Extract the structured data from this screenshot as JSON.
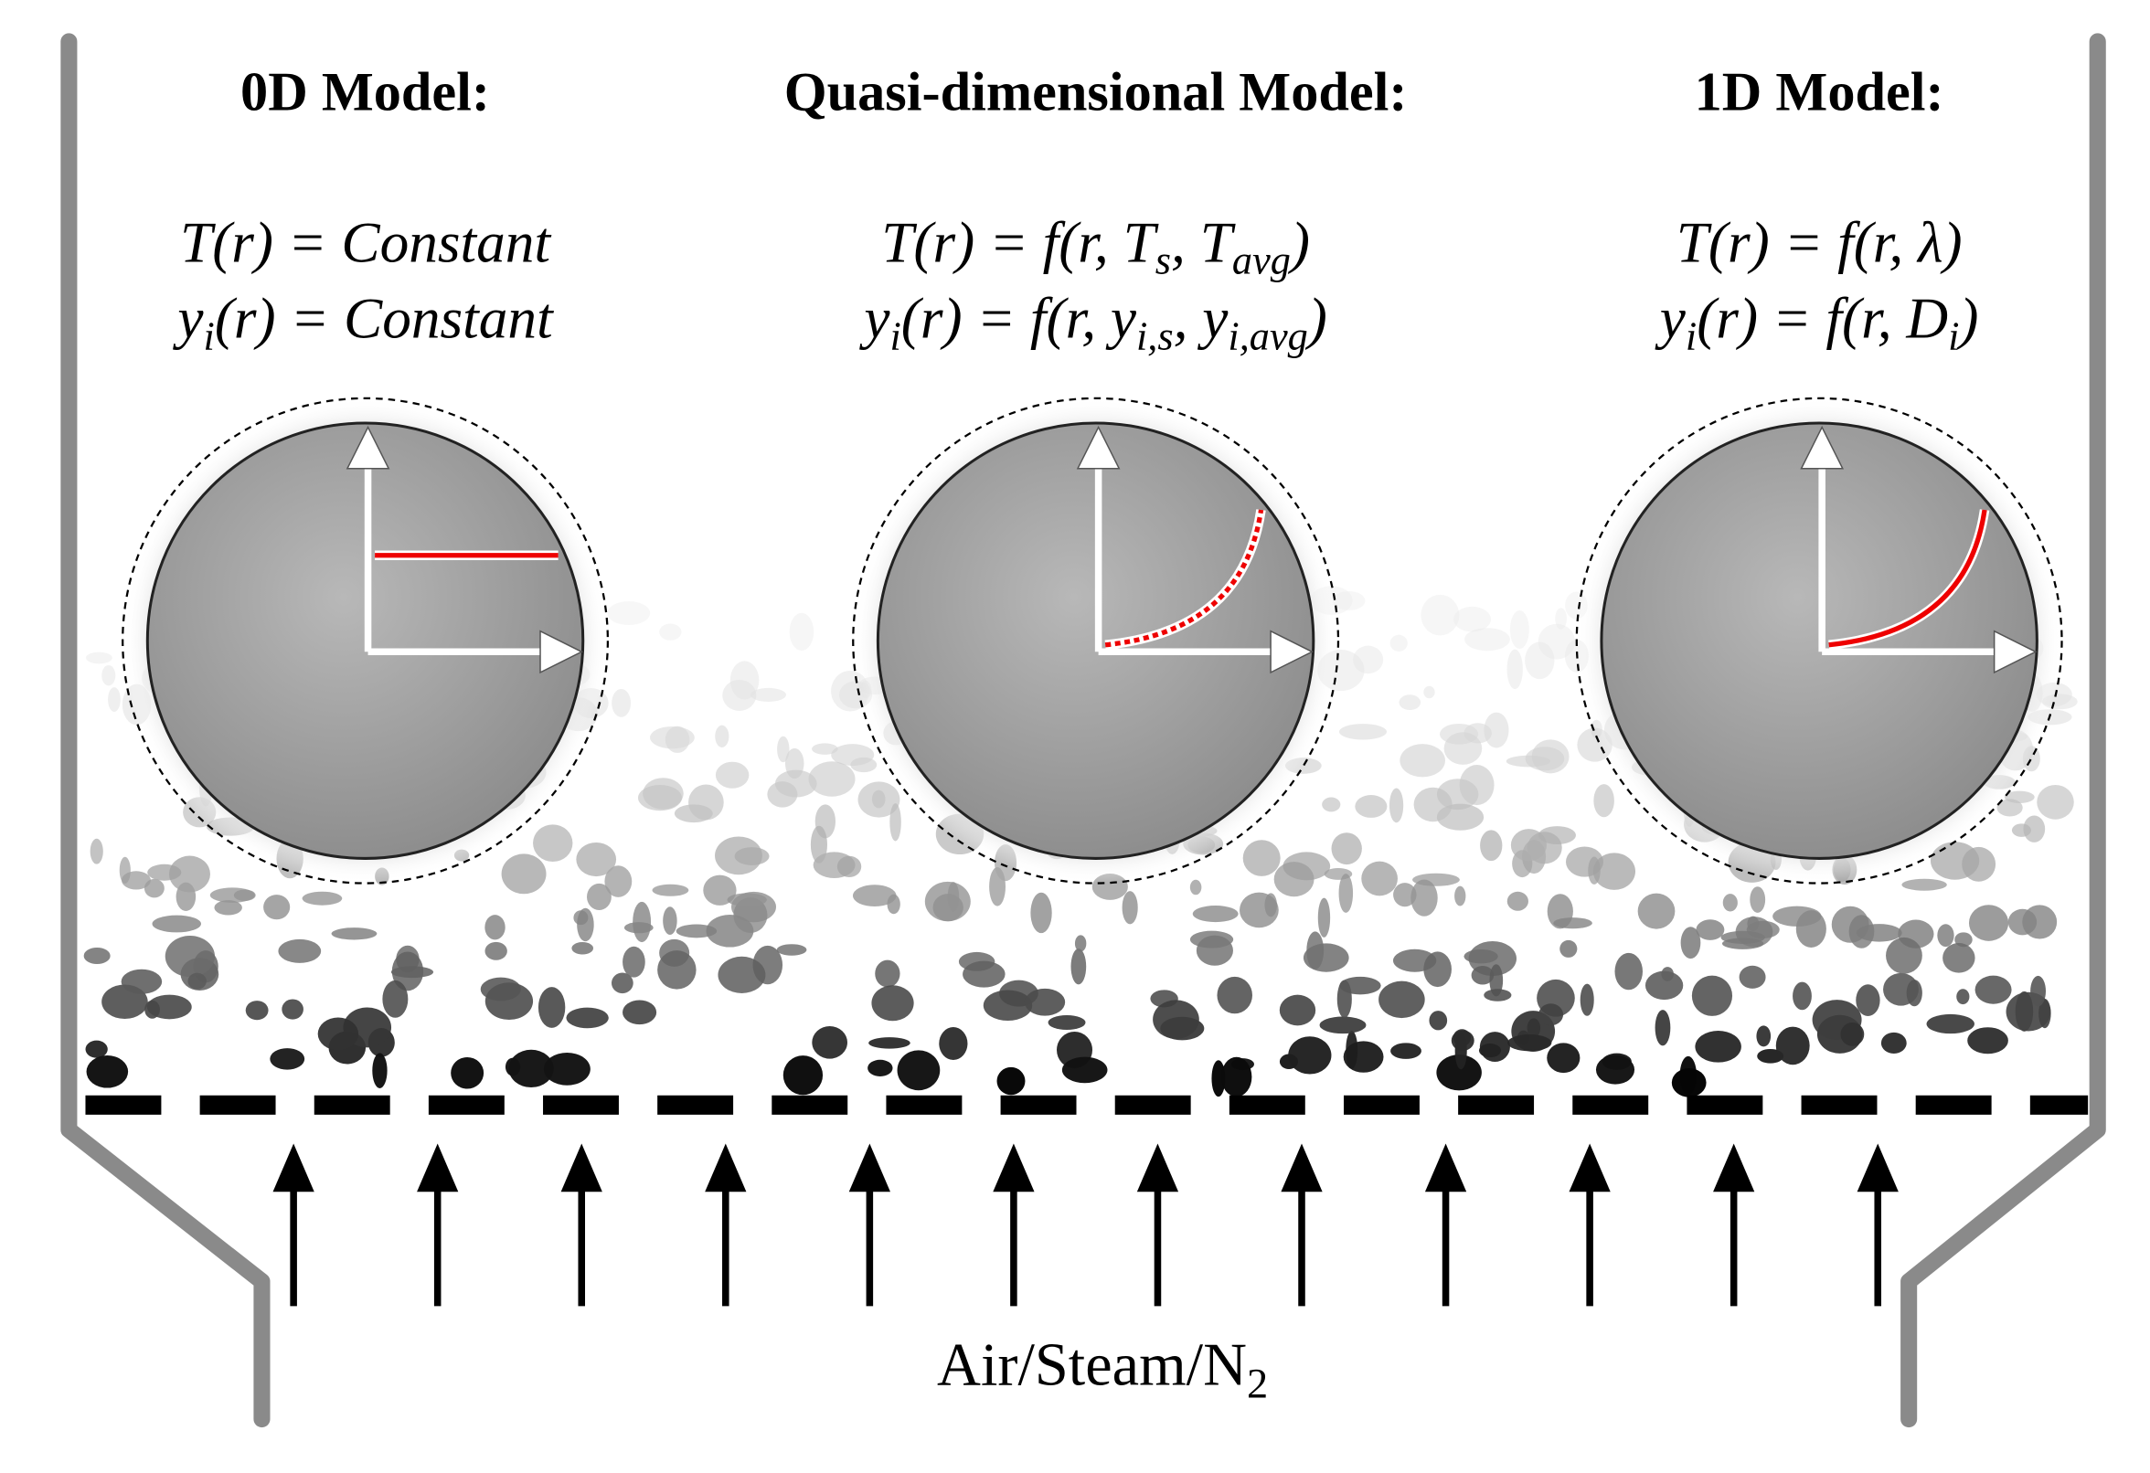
{
  "panels": [
    {
      "title": "0D Model:",
      "equations": [
        [
          {
            "text": "T(r) = Constant"
          }
        ],
        [
          {
            "text": "y"
          },
          {
            "text": "i",
            "sub": true
          },
          {
            "text": "(r) = Constant"
          }
        ]
      ]
    },
    {
      "title": "Quasi-dimensional Model:",
      "equations": [
        [
          {
            "text": "T(r) = f(r, T"
          },
          {
            "text": "s",
            "sub": true
          },
          {
            "text": ", T"
          },
          {
            "text": "avg",
            "sub": true
          },
          {
            "text": ")"
          }
        ],
        [
          {
            "text": "y"
          },
          {
            "text": "i",
            "sub": true
          },
          {
            "text": "(r) = f(r, y"
          },
          {
            "text": "i,s",
            "sub": true
          },
          {
            "text": ", y"
          },
          {
            "text": "i,avg",
            "sub": true
          },
          {
            "text": ")"
          }
        ]
      ]
    },
    {
      "title": "1D Model:",
      "equations": [
        [
          {
            "text": "T(r) = f(r, λ)"
          }
        ],
        [
          {
            "text": "y"
          },
          {
            "text": "i",
            "sub": true
          },
          {
            "text": "(r) = f(r, D"
          },
          {
            "text": "i",
            "sub": true
          },
          {
            "text": ")"
          }
        ]
      ]
    }
  ],
  "gas_label": [
    {
      "text": "Air/Steam/N"
    },
    {
      "text": "2",
      "sub": true
    }
  ]
}
